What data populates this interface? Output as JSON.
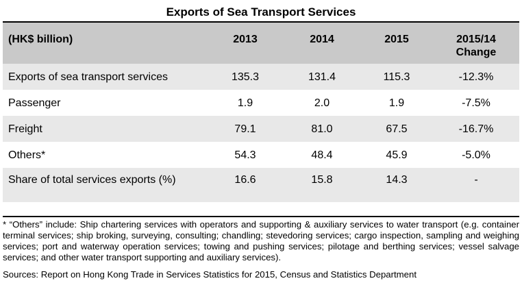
{
  "title": "Exports of Sea Transport Services",
  "table": {
    "headers": [
      "(HK$ billion)",
      "2013",
      "2014",
      "2015",
      "2015/14 Change"
    ],
    "header_change_line1": "2015/14",
    "header_change_line2": "Change",
    "rows": [
      {
        "label": "Exports of sea transport services",
        "y2013": "135.3",
        "y2014": "131.4",
        "y2015": "115.3",
        "change": "-12.3%"
      },
      {
        "label": "Passenger",
        "y2013": "1.9",
        "y2014": "2.0",
        "y2015": "1.9",
        "change": "-7.5%"
      },
      {
        "label": "Freight",
        "y2013": "79.1",
        "y2014": "81.0",
        "y2015": "67.5",
        "change": "-16.7%"
      },
      {
        "label": "Others*",
        "y2013": "54.3",
        "y2014": "48.4",
        "y2015": "45.9",
        "change": "-5.0%"
      },
      {
        "label": "Share of total services exports (%)",
        "y2013": "16.6",
        "y2014": "15.8",
        "y2015": "14.3",
        "change": "-"
      }
    ]
  },
  "footnote": "* “Others” include: Ship chartering services with operators and supporting & auxiliary services to water transport (e.g. container terminal services; ship broking, surveying, consulting; chandling; stevedoring services; cargo inspection, sampling and weighing services; port and waterway operation services; towing and pushing services; pilotage and berthing services; vessel salvage services; and other water transport supporting and auxiliary services).",
  "source": "Sources: Report on Hong Kong Trade in Services Statistics for 2015, Census and Statistics Department"
}
